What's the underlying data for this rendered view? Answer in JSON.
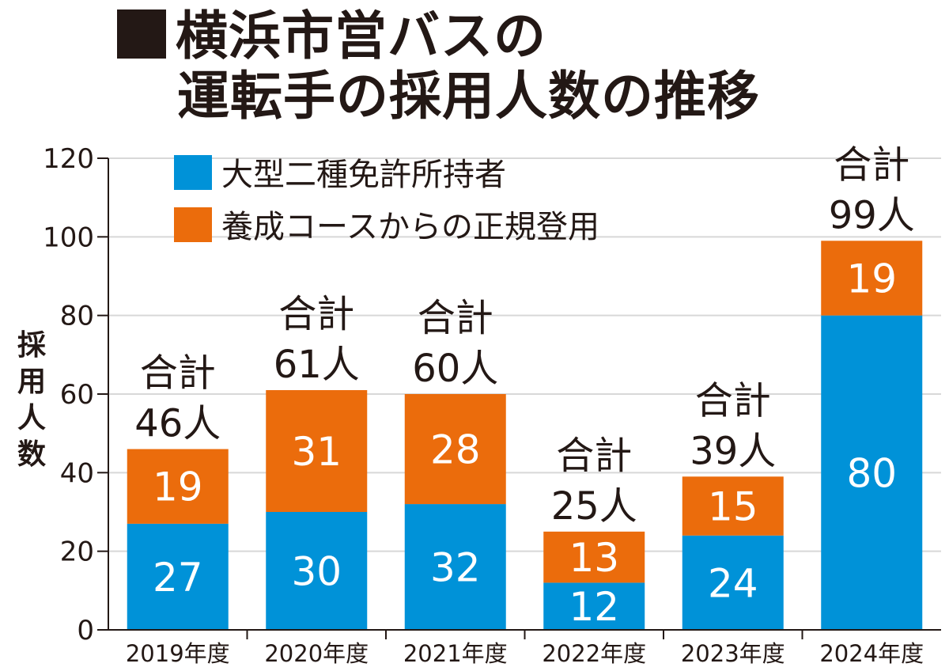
{
  "title": {
    "line1": "横浜市営バスの",
    "line2": "運転手の採用人数の推移"
  },
  "chart_data": {
    "type": "bar",
    "stacked": true,
    "title": "横浜市営バスの運転手の採用人数の推移",
    "ylabel": "採用人数",
    "xlabel": "",
    "ylim": [
      0,
      120
    ],
    "yticks": [
      0,
      20,
      40,
      60,
      80,
      100,
      120
    ],
    "grid": true,
    "legend_position": "top-left",
    "categories": [
      "2019年度",
      "2020年度",
      "2021年度",
      "2022年度",
      "2023年度",
      "2024年度"
    ],
    "series": [
      {
        "name": "大型二種免許所持者",
        "color": "#0092d8",
        "values": [
          27,
          30,
          32,
          12,
          24,
          80
        ]
      },
      {
        "name": "養成コースからの正規登用",
        "color": "#eb6c0c",
        "values": [
          19,
          31,
          28,
          13,
          15,
          19
        ]
      }
    ],
    "total_prefix": "合計",
    "total_labels": [
      "46人",
      "61人",
      "60人",
      "25人",
      "39人",
      "99人"
    ]
  }
}
